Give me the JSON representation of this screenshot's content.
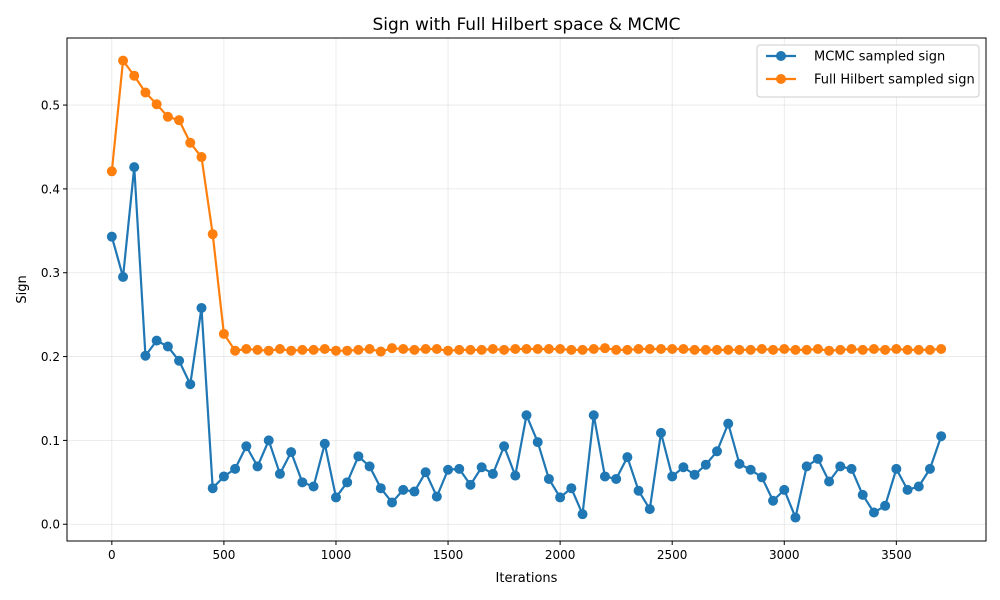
{
  "chart_data": {
    "type": "line",
    "title": "Sign with Full Hilbert space & MCMC",
    "xlabel": "Iterations",
    "ylabel": "Sign",
    "xlim": [
      -200,
      3900
    ],
    "ylim": [
      -0.02,
      0.58
    ],
    "xticks": [
      0,
      500,
      1000,
      1500,
      2000,
      2500,
      3000,
      3500
    ],
    "yticks": [
      0.0,
      0.1,
      0.2,
      0.3,
      0.4,
      0.5
    ],
    "xtick_labels": [
      "0",
      "500",
      "1000",
      "1500",
      "2000",
      "2500",
      "3000",
      "3500"
    ],
    "ytick_labels": [
      "0.0",
      "0.1",
      "0.2",
      "0.3",
      "0.4",
      "0.5"
    ],
    "grid": true,
    "legend_position": "top-right",
    "x": [
      0,
      50,
      100,
      150,
      200,
      250,
      300,
      350,
      400,
      450,
      500,
      550,
      600,
      650,
      700,
      750,
      800,
      850,
      900,
      950,
      1000,
      1050,
      1100,
      1150,
      1200,
      1250,
      1300,
      1350,
      1400,
      1450,
      1500,
      1550,
      1600,
      1650,
      1700,
      1750,
      1800,
      1850,
      1900,
      1950,
      2000,
      2050,
      2100,
      2150,
      2200,
      2250,
      2300,
      2350,
      2400,
      2450,
      2500,
      2550,
      2600,
      2650,
      2700,
      2750,
      2800,
      2850,
      2900,
      2950,
      3000,
      3050,
      3100,
      3150,
      3200,
      3250,
      3300,
      3350,
      3400,
      3450,
      3500,
      3550,
      3600,
      3650,
      3700
    ],
    "series": [
      {
        "name": "MCMC sampled sign",
        "color": "#1f77b4",
        "values": [
          0.343,
          0.295,
          0.426,
          0.201,
          0.219,
          0.212,
          0.195,
          0.167,
          0.258,
          0.043,
          0.057,
          0.066,
          0.093,
          0.069,
          0.1,
          0.06,
          0.086,
          0.05,
          0.045,
          0.096,
          0.032,
          0.05,
          0.081,
          0.069,
          0.043,
          0.026,
          0.041,
          0.039,
          0.062,
          0.033,
          0.065,
          0.066,
          0.047,
          0.068,
          0.06,
          0.093,
          0.058,
          0.13,
          0.098,
          0.054,
          0.032,
          0.043,
          0.012,
          0.13,
          0.057,
          0.054,
          0.08,
          0.04,
          0.018,
          0.109,
          0.057,
          0.068,
          0.059,
          0.071,
          0.087,
          0.12,
          0.072,
          0.065,
          0.056,
          0.028,
          0.041,
          0.008,
          0.069,
          0.078,
          0.051,
          0.069,
          0.066,
          0.035,
          0.014,
          0.022,
          0.066,
          0.041,
          0.045,
          0.066,
          0.105
        ]
      },
      {
        "name": "Full Hilbert sampled sign",
        "color": "#ff7f0e",
        "values": [
          0.421,
          0.553,
          0.535,
          0.515,
          0.501,
          0.486,
          0.482,
          0.455,
          0.438,
          0.346,
          0.227,
          0.207,
          0.209,
          0.208,
          0.207,
          0.209,
          0.207,
          0.208,
          0.208,
          0.209,
          0.207,
          0.207,
          0.208,
          0.209,
          0.206,
          0.21,
          0.209,
          0.208,
          0.209,
          0.209,
          0.207,
          0.208,
          0.208,
          0.208,
          0.209,
          0.208,
          0.209,
          0.209,
          0.209,
          0.209,
          0.209,
          0.208,
          0.208,
          0.209,
          0.21,
          0.208,
          0.208,
          0.209,
          0.209,
          0.209,
          0.209,
          0.209,
          0.208,
          0.208,
          0.208,
          0.208,
          0.208,
          0.208,
          0.209,
          0.208,
          0.209,
          0.208,
          0.208,
          0.209,
          0.207,
          0.208,
          0.209,
          0.208,
          0.209,
          0.208,
          0.209,
          0.208,
          0.208,
          0.208,
          0.209
        ]
      }
    ]
  }
}
